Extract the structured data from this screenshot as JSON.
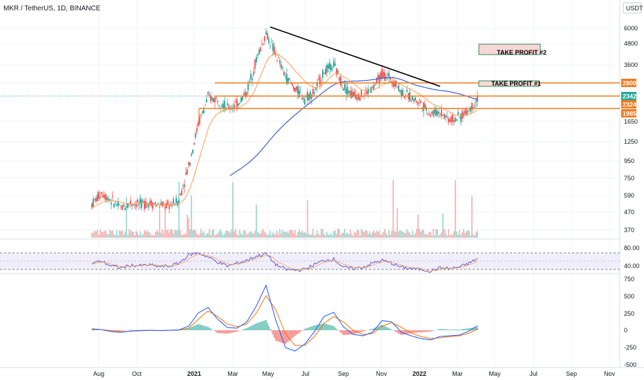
{
  "header": {
    "symbol": "MKR / TetherUS, 1D, BINANCE",
    "quote_badge": "USDT"
  },
  "colors": {
    "up": "#26a69a",
    "down": "#ef5350",
    "ema_fast": "#ff9a4d",
    "sma_slow": "#3b5fd6",
    "level": "#ef7a1a",
    "trend": "#000000",
    "rsi": "#6a5acd",
    "rsi_fill": "#f1eefb",
    "macd": "#2962ff",
    "signal": "#ff6d00",
    "tp_fill": "#f8d7d7",
    "tp_border": "#2e8b57"
  },
  "labels": {
    "tp1": "TAKE PROFIT #1",
    "tp2": "TAKE PROFIT #2",
    "tag_2800": "2800",
    "tag_2342": "2342",
    "tag_2324": "2324",
    "tag_1985": "1985"
  },
  "chart_data": [
    {
      "type": "candlestick",
      "title": "MKR / TetherUS, 1D, BINANCE",
      "scale": "log",
      "y_ticks": [
        "6000",
        "4800",
        "3600",
        "2800",
        "2342",
        "2324",
        "1985",
        "1650",
        "1250",
        "950",
        "750",
        "590",
        "470",
        "370"
      ],
      "x_ticks": [
        "Aug",
        "Oct",
        "2021",
        "Mar",
        "May",
        "Jul",
        "Sep",
        "Nov",
        "2022",
        "Mar",
        "May",
        "Jul",
        "Sep",
        "Nov"
      ],
      "x": [
        "2020-08-01",
        "2020-08-15",
        "2020-09-01",
        "2020-09-15",
        "2020-10-01",
        "2020-10-15",
        "2020-11-01",
        "2020-11-15",
        "2020-12-01",
        "2020-12-15",
        "2021-01-01",
        "2021-01-15",
        "2021-02-01",
        "2021-02-15",
        "2021-03-01",
        "2021-03-15",
        "2021-04-01",
        "2021-04-15",
        "2021-05-01",
        "2021-05-15",
        "2021-06-01",
        "2021-06-15",
        "2021-07-01",
        "2021-07-15",
        "2021-08-01",
        "2021-08-15",
        "2021-09-01",
        "2021-09-15",
        "2021-10-01",
        "2021-10-15",
        "2021-11-01",
        "2021-11-15",
        "2021-12-01",
        "2021-12-15",
        "2022-01-01",
        "2022-01-15",
        "2022-02-01",
        "2022-02-15",
        "2022-03-01",
        "2022-03-15",
        "2022-04-01"
      ],
      "close": [
        530,
        620,
        560,
        500,
        540,
        530,
        540,
        520,
        520,
        560,
        900,
        1600,
        2300,
        2250,
        2000,
        2100,
        2500,
        3900,
        5600,
        4200,
        3100,
        2600,
        2300,
        2500,
        3300,
        3600,
        2700,
        2400,
        2400,
        2600,
        3200,
        3000,
        2500,
        2300,
        2150,
        1850,
        1900,
        1700,
        1750,
        1950,
        2340
      ],
      "levels": [
        2800,
        2324,
        1985
      ],
      "trendline": {
        "from": [
          "2021-05-03",
          6000
        ],
        "to": [
          "2021-12-10",
          2900
        ]
      },
      "take_profit_zones": [
        {
          "label": "TAKE PROFIT #1",
          "low": 2800,
          "high": 2950
        },
        {
          "label": "TAKE PROFIT #2",
          "low": 4300,
          "high": 5100
        }
      ],
      "last_price": 2342
    },
    {
      "type": "line",
      "name": "RSI",
      "y_ticks": [
        "80.00",
        "40.00"
      ],
      "values": [
        55,
        60,
        48,
        44,
        50,
        49,
        51,
        47,
        48,
        55,
        75,
        80,
        70,
        58,
        48,
        55,
        62,
        72,
        78,
        52,
        40,
        38,
        40,
        52,
        62,
        65,
        45,
        42,
        45,
        55,
        62,
        55,
        45,
        42,
        40,
        36,
        44,
        42,
        46,
        55,
        68
      ]
    },
    {
      "type": "line",
      "name": "MACD",
      "y_ticks": [
        "750",
        "500",
        "250",
        "0",
        "-250",
        "-500"
      ],
      "macd": [
        20,
        10,
        -20,
        -30,
        -10,
        -5,
        0,
        -5,
        0,
        5,
        60,
        250,
        330,
        160,
        40,
        30,
        120,
        350,
        650,
        150,
        -250,
        -300,
        -200,
        -20,
        200,
        260,
        50,
        -60,
        -80,
        -30,
        140,
        120,
        -30,
        -80,
        -120,
        -140,
        -90,
        -80,
        -70,
        -10,
        80
      ],
      "signal": [
        10,
        10,
        -5,
        -20,
        -15,
        -8,
        -3,
        -4,
        -2,
        2,
        30,
        160,
        280,
        200,
        90,
        50,
        90,
        250,
        500,
        300,
        -50,
        -220,
        -220,
        -90,
        100,
        200,
        120,
        0,
        -60,
        -50,
        60,
        110,
        40,
        -40,
        -90,
        -120,
        -110,
        -90,
        -80,
        -40,
        30
      ]
    }
  ]
}
